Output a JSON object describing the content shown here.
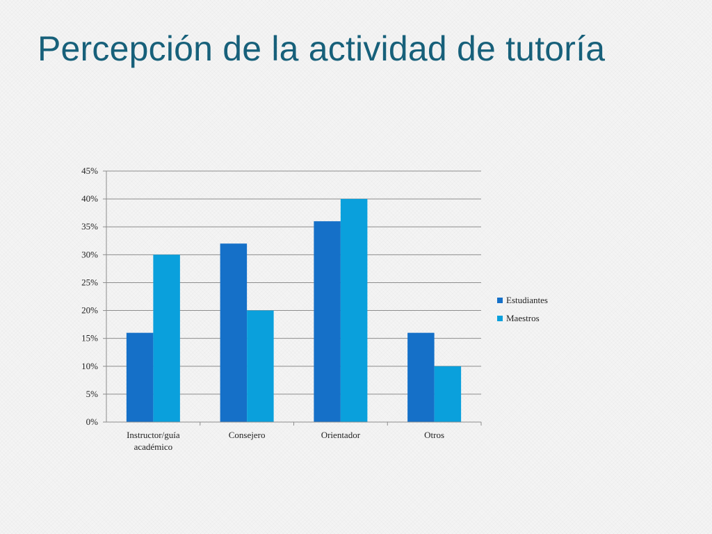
{
  "slide": {
    "title": "Percepción de la actividad de tutoría"
  },
  "colors": {
    "title": "#17607a",
    "estudiantes": "#1570c8",
    "maestros": "#0aa0dc",
    "gridline": "#8c8c8c",
    "axis": "#8c8c8c"
  },
  "chart_data": {
    "type": "bar",
    "categories": [
      [
        "Instructor/guía",
        "académico"
      ],
      [
        "Consejero"
      ],
      [
        "Orientador"
      ],
      [
        "Otros"
      ]
    ],
    "series": [
      {
        "name": "Estudiantes",
        "values": [
          16,
          32,
          36,
          16
        ],
        "color": "#1570c8"
      },
      {
        "name": "Maestros",
        "values": [
          30,
          20,
          40,
          10
        ],
        "color": "#0aa0dc"
      }
    ],
    "ylim": [
      0,
      45
    ],
    "ytick_step": 5,
    "ytick_suffix": "%",
    "grid": true,
    "legend_position": "right"
  }
}
